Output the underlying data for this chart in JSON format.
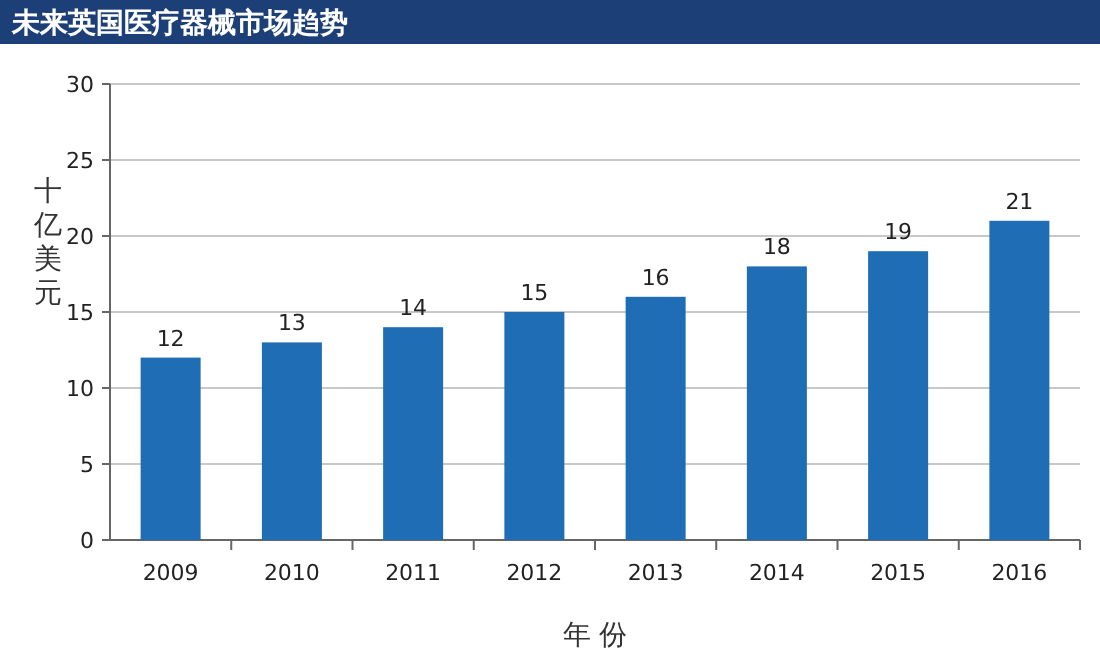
{
  "chart_data": {
    "type": "bar",
    "title": "未来英国医疗器械市场趋势",
    "xlabel": "年 份",
    "ylabel": "十亿美元",
    "categories": [
      "2009",
      "2010",
      "2011",
      "2012",
      "2013",
      "2014",
      "2015",
      "2016"
    ],
    "values": [
      12,
      13,
      14,
      15,
      16,
      18,
      19,
      21
    ],
    "color": "#1f6db5",
    "ylim": [
      0,
      30
    ],
    "yticks": [
      0,
      5,
      10,
      15,
      20,
      25,
      30
    ],
    "grid": "y",
    "data_labels": true
  }
}
